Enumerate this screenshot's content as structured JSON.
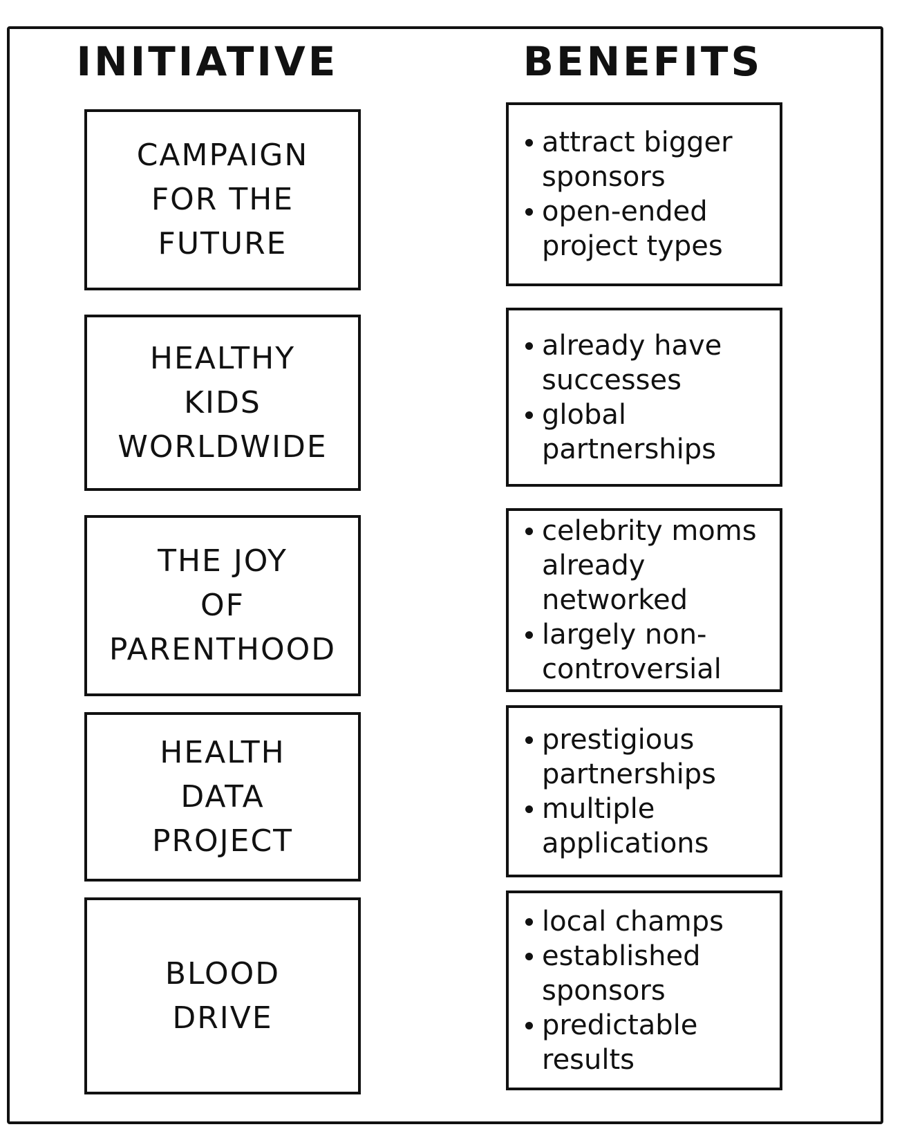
{
  "headers": {
    "initiative": "INITIATIVE",
    "benefits": "BENEFITS"
  },
  "rows": [
    {
      "initiative": [
        "CAMPAIGN",
        "FOR THE",
        "FUTURE"
      ],
      "benefits": [
        "attract bigger sponsors",
        "open-ended project types"
      ]
    },
    {
      "initiative": [
        "HEALTHY",
        "KIDS",
        "WORLDWIDE"
      ],
      "benefits": [
        "already have successes",
        "global partnerships"
      ]
    },
    {
      "initiative": [
        "THE JOY",
        "OF",
        "PARENTHOOD"
      ],
      "benefits": [
        "celebrity moms already networked",
        "largely non-controversial"
      ]
    },
    {
      "initiative": [
        "HEALTH",
        "DATA",
        "PROJECT"
      ],
      "benefits": [
        "prestigious partnerships",
        "multiple applications"
      ]
    },
    {
      "initiative": [
        "BLOOD",
        "DRIVE"
      ],
      "benefits": [
        "local champs",
        "established sponsors",
        "predictable results"
      ]
    }
  ]
}
